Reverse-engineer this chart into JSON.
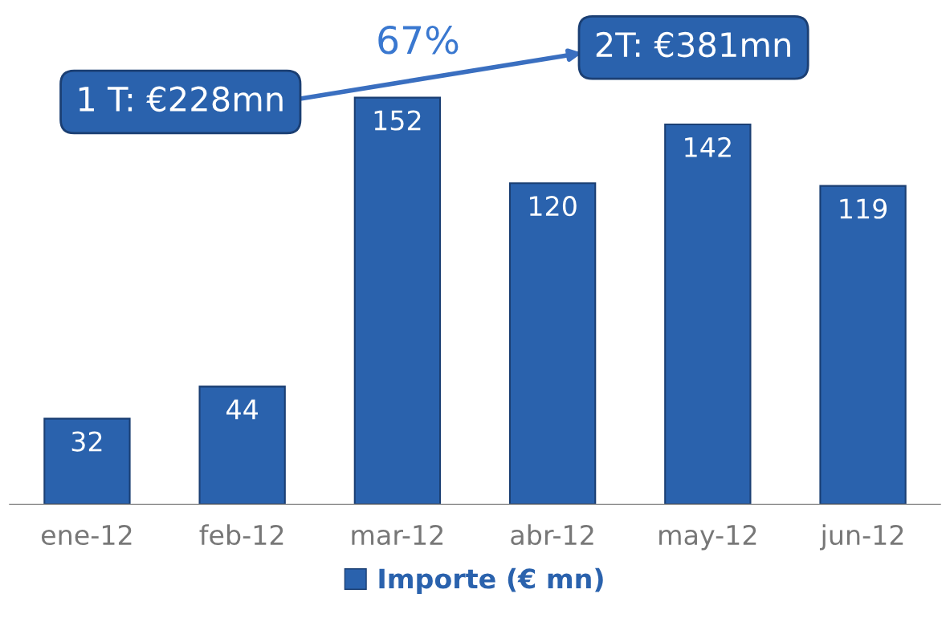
{
  "chart_data": {
    "type": "bar",
    "categories": [
      "ene-12",
      "feb-12",
      "mar-12",
      "abr-12",
      "may-12",
      "jun-12"
    ],
    "series": [
      {
        "name": "Importe (€ mn)",
        "color": "#2a62ad",
        "values": [
          32,
          44,
          152,
          120,
          142,
          119
        ]
      }
    ],
    "data_labels": true,
    "legend": "bottom",
    "grid": false,
    "annotations": [
      "1 T: €228mn",
      "2T: €381mn",
      "67%"
    ]
  }
}
